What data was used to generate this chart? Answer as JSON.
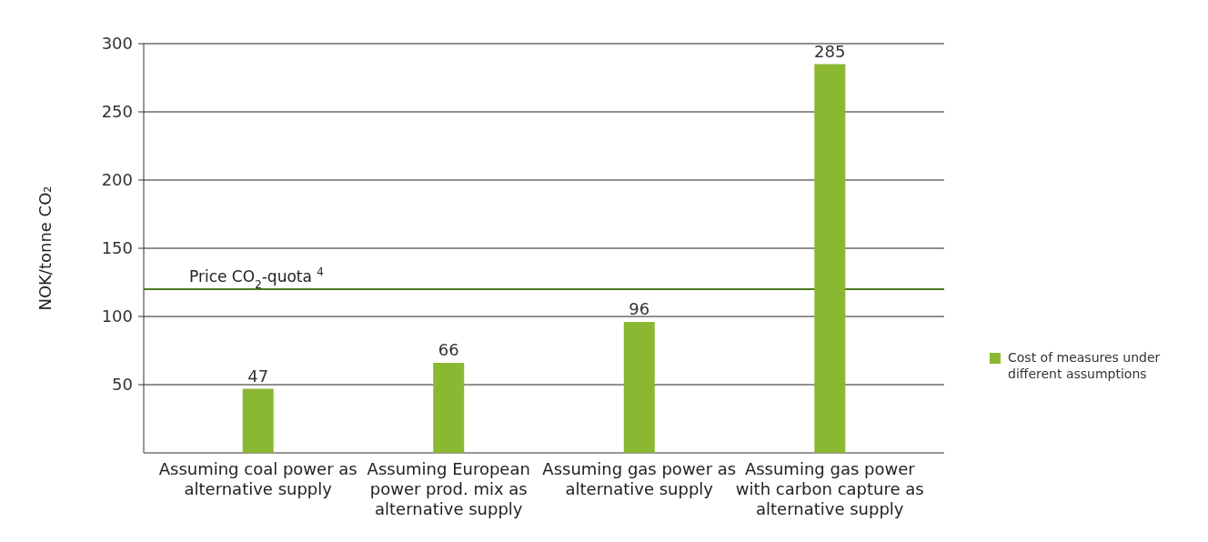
{
  "chart_data": {
    "type": "bar",
    "ylabel": "NOK/tonne CO₂",
    "categories": [
      "Assuming coal power as alternative supply",
      "Assuming European power prod. mix as alternative supply",
      "Assuming gas power as alternative supply",
      "Assuming gas power with carbon capture as alternative supply"
    ],
    "series": [
      {
        "name": "Cost of measures under different assumptions",
        "color": "#8ab833",
        "values": [
          47,
          66,
          96,
          285
        ]
      }
    ],
    "ylim": [
      0,
      300
    ],
    "yticks": [
      50,
      100,
      150,
      200,
      250,
      300
    ],
    "grid": "y",
    "data_labels": true,
    "legend": "right",
    "ref_lines": [
      {
        "axis": "y",
        "value": 120,
        "label": "Price CO$_{2}$-quota $^{4}$",
        "color": "#4f7a1f"
      }
    ]
  }
}
